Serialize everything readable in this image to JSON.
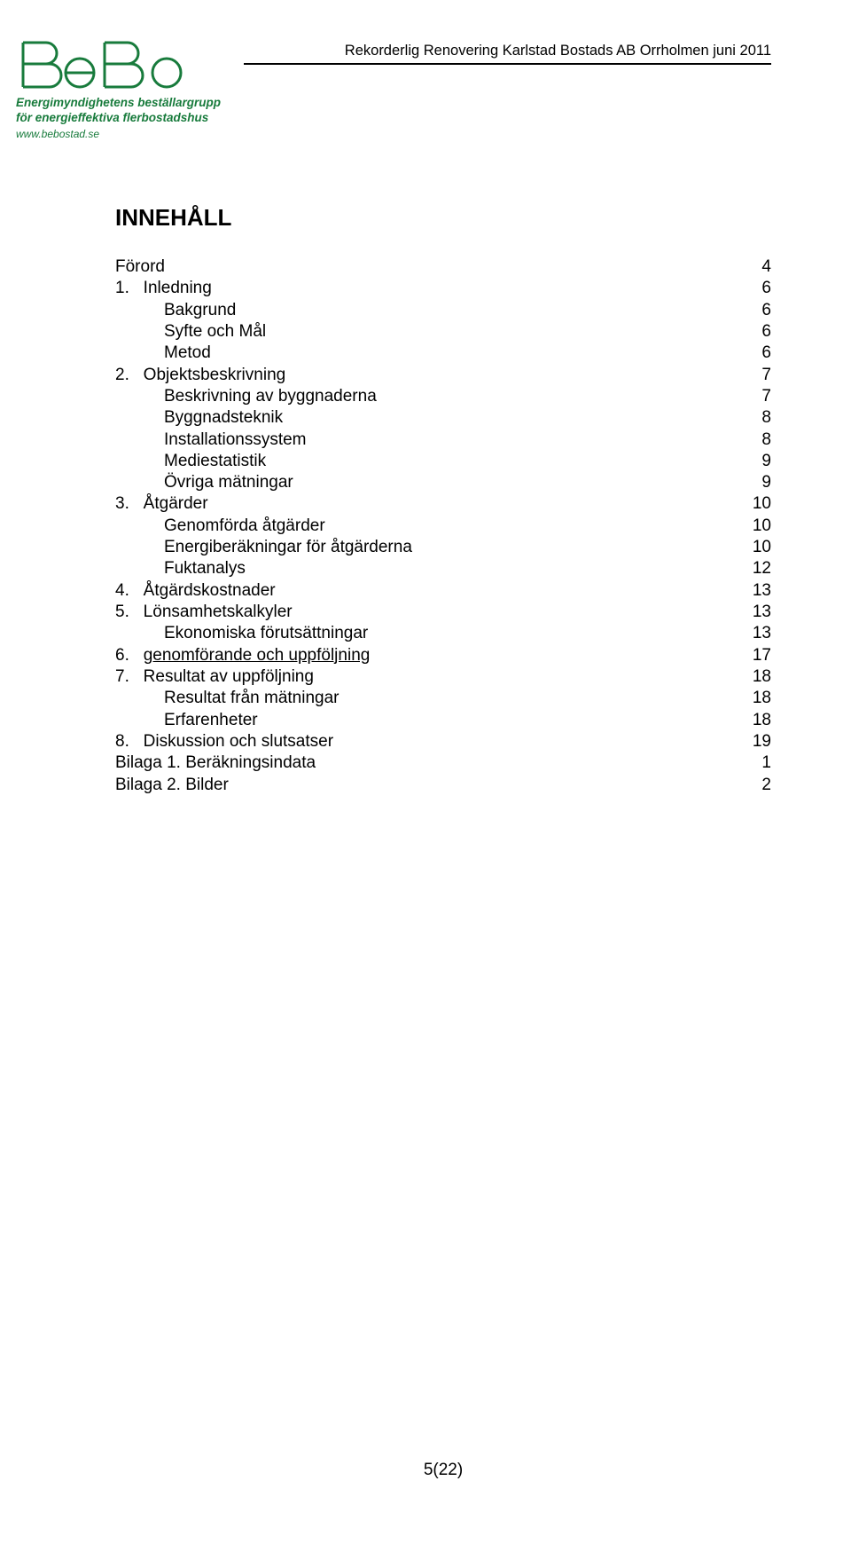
{
  "header": {
    "title_text": "Rekorderlig Renovering Karlstad Bostads AB Orrholmen juni 2011",
    "logo_sub_line1": "Energimyndighetens beställargrupp",
    "logo_sub_line2": "för energieffektiva flerbostadshus",
    "logo_link": "www.bebostad.se",
    "logo_colors": {
      "outline": "#187b3c",
      "text": "#187b3c"
    }
  },
  "toc": {
    "heading": "INNEHÅLL",
    "entries": [
      {
        "level": 1,
        "label": "Förord",
        "page": "4"
      },
      {
        "level": 1,
        "label": "1.   Inledning",
        "page": "6"
      },
      {
        "level": 2,
        "label": "Bakgrund",
        "page": "6"
      },
      {
        "level": 2,
        "label": "Syfte och Mål",
        "page": "6"
      },
      {
        "level": 2,
        "label": "Metod",
        "page": "6"
      },
      {
        "level": 1,
        "label": "2.   Objektsbeskrivning",
        "page": "7"
      },
      {
        "level": 2,
        "label": "Beskrivning av byggnaderna",
        "page": "7"
      },
      {
        "level": 2,
        "label": "Byggnadsteknik",
        "page": "8"
      },
      {
        "level": 2,
        "label": "Installationssystem",
        "page": "8"
      },
      {
        "level": 2,
        "label": "Mediestatistik",
        "page": "9"
      },
      {
        "level": 2,
        "label": "Övriga mätningar",
        "page": "9"
      },
      {
        "level": 1,
        "label": "3.   Åtgärder",
        "page": "10"
      },
      {
        "level": 2,
        "label": "Genomförda åtgärder",
        "page": "10"
      },
      {
        "level": 2,
        "label": "Energiberäkningar för åtgärderna",
        "page": "10"
      },
      {
        "level": 2,
        "label": "Fuktanalys",
        "page": "12"
      },
      {
        "level": 1,
        "label": "4.   Åtgärdskostnader",
        "page": "13"
      },
      {
        "level": 1,
        "label": "5.   Lönsamhetskalkyler",
        "page": "13"
      },
      {
        "level": 2,
        "label": "Ekonomiska förutsättningar",
        "page": "13"
      },
      {
        "level": 1,
        "label": "6.   genomförande och uppföljning",
        "page": "17",
        "underline": true
      },
      {
        "level": 1,
        "label": "7.   Resultat av uppföljning",
        "page": "18"
      },
      {
        "level": 2,
        "label": "Resultat från mätningar",
        "page": "18"
      },
      {
        "level": 2,
        "label": "Erfarenheter",
        "page": "18"
      },
      {
        "level": 1,
        "label": "8.   Diskussion och slutsatser",
        "page": "19"
      },
      {
        "level": 1,
        "label": "Bilaga 1. Beräkningsindata",
        "page": "1"
      },
      {
        "level": 1,
        "label": "Bilaga 2. Bilder",
        "page": "2"
      }
    ]
  },
  "footer": {
    "page_label": "5(22)"
  }
}
